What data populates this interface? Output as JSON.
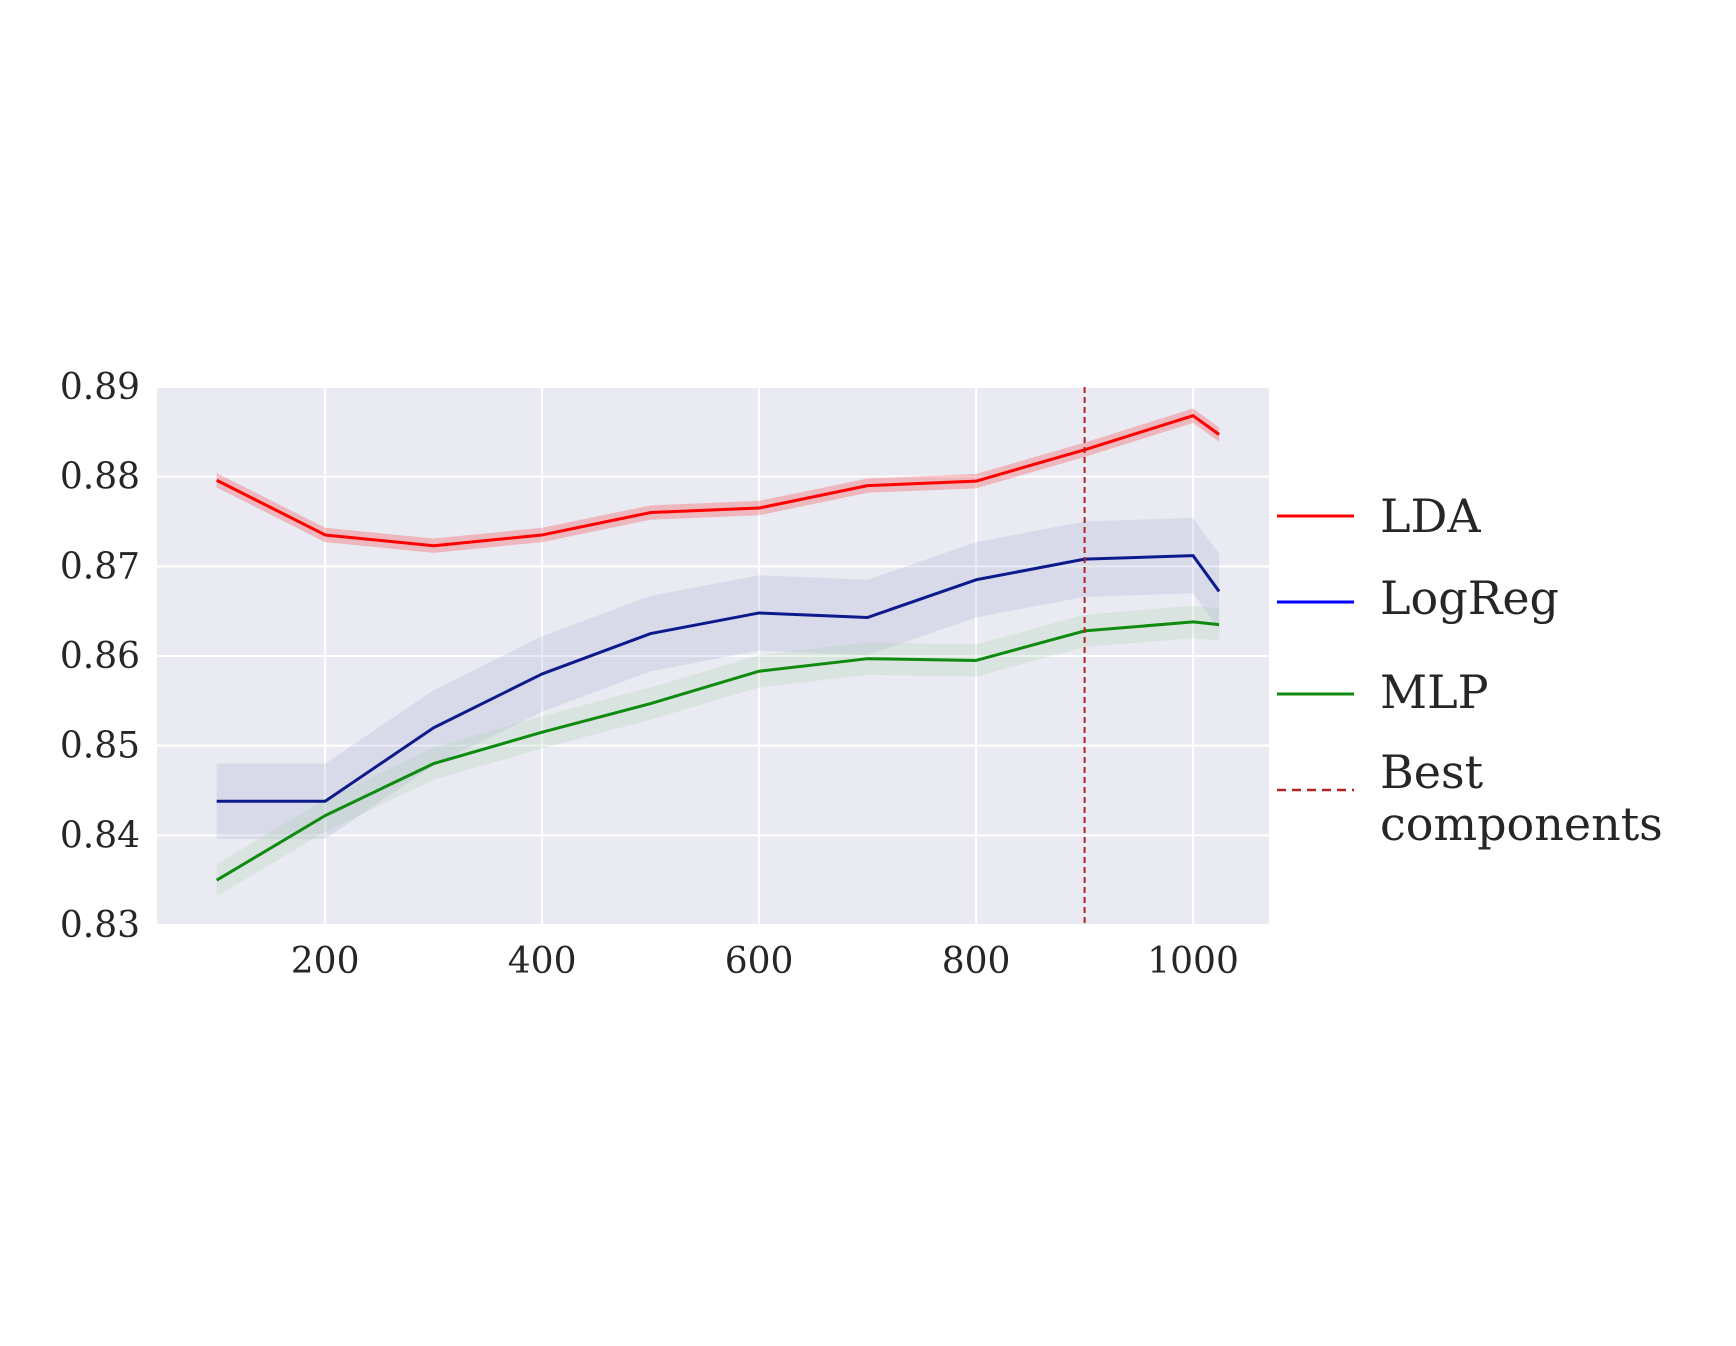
{
  "chart_data": {
    "type": "line",
    "title": "",
    "xlabel": "",
    "ylabel": "",
    "xlim": [
      45,
      1070
    ],
    "ylim": [
      0.83,
      0.89
    ],
    "x": [
      100,
      200,
      300,
      400,
      500,
      600,
      700,
      800,
      900,
      1000,
      1024
    ],
    "xticks": [
      200,
      400,
      600,
      800,
      1000
    ],
    "xtick_labels": [
      "200",
      "400",
      "600",
      "800",
      "1000"
    ],
    "yticks": [
      0.83,
      0.84,
      0.85,
      0.86,
      0.87,
      0.88,
      0.89
    ],
    "ytick_labels": [
      "0.83",
      "0.84",
      "0.85",
      "0.86",
      "0.87",
      "0.88",
      "0.89"
    ],
    "grid": true,
    "legend_position": "right",
    "series": [
      {
        "name": "LDA",
        "color": "#ff0000",
        "band_color": "#ff0000",
        "values": [
          0.8796,
          0.8735,
          0.8723,
          0.8735,
          0.876,
          0.8765,
          0.879,
          0.8795,
          0.883,
          0.8868,
          0.8847
        ],
        "band": 0.0008
      },
      {
        "name": "LogReg",
        "color": "#0d1a8c",
        "band_color": "#9aa6cf",
        "values": [
          0.8438,
          0.8438,
          0.852,
          0.858,
          0.8625,
          0.8648,
          0.8643,
          0.8685,
          0.8708,
          0.8712,
          0.8672
        ],
        "band": 0.0042
      },
      {
        "name": "MLP",
        "color": "#0e8a0e",
        "band_color": "#9fcf9f",
        "values": [
          0.835,
          0.8422,
          0.848,
          0.8515,
          0.8547,
          0.8583,
          0.8597,
          0.8595,
          0.8628,
          0.8638,
          0.8635
        ],
        "band": 0.0018
      }
    ],
    "vline": {
      "x": 900,
      "label": "Best components",
      "label_line1": "Best",
      "label_line2": "components",
      "color": "#b22222",
      "style": "dashed"
    },
    "legend": [
      {
        "label": "LDA",
        "color": "#ff0000",
        "style": "solid"
      },
      {
        "label": "LogReg",
        "color": "#0000ff",
        "style": "solid"
      },
      {
        "label": "MLP",
        "color": "#108a10",
        "style": "solid"
      }
    ],
    "colors": {
      "plot_background": "#eaeaf2",
      "grid": "#ffffff",
      "text": "#262626"
    }
  }
}
